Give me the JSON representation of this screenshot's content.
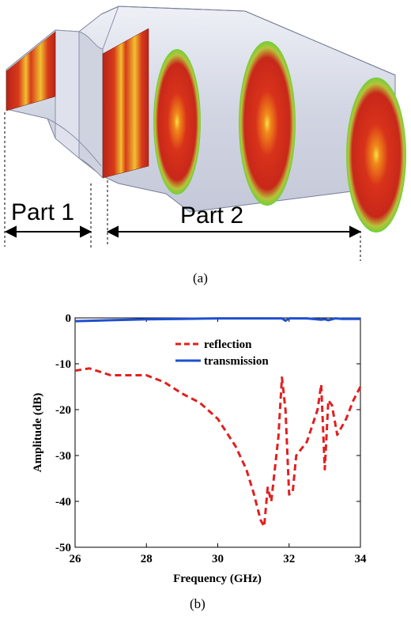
{
  "figure_a": {
    "part1_label": "Part 1",
    "part2_label": "Part 2",
    "caption": "(a)"
  },
  "figure_b": {
    "caption": "(b)"
  },
  "chart_data": {
    "type": "line",
    "xlabel": "Frequency (GHz)",
    "ylabel": "Amplitude (dB)",
    "xlim": [
      26,
      34
    ],
    "ylim": [
      -50,
      0
    ],
    "xticks": [
      "26",
      "28",
      "30",
      "32",
      "34"
    ],
    "yticks": [
      "0",
      "-10",
      "-20",
      "-30",
      "-40",
      "-50"
    ],
    "grid": false,
    "legend_position": "top-right",
    "series": [
      {
        "name": "reflection",
        "color": "#e02020",
        "style": "dashed",
        "x": [
          26.0,
          26.4,
          27.0,
          27.5,
          28.0,
          28.5,
          29.0,
          29.5,
          30.0,
          30.5,
          30.8,
          31.0,
          31.2,
          31.3,
          31.4,
          31.5,
          31.7,
          31.8,
          31.9,
          32.0,
          32.1,
          32.2,
          32.5,
          32.8,
          32.9,
          33.0,
          33.1,
          33.2,
          33.35,
          33.6,
          33.8,
          34.0
        ],
        "values": [
          -11.5,
          -11.0,
          -12.5,
          -12.5,
          -12.5,
          -14,
          -16.5,
          -18.5,
          -22,
          -28,
          -33,
          -38,
          -44,
          -45.5,
          -37,
          -40,
          -26,
          -13,
          -20,
          -38.5,
          -38,
          -30,
          -27,
          -20,
          -14.5,
          -33,
          -18,
          -19,
          -25.5,
          -22,
          -18,
          -15
        ]
      },
      {
        "name": "transmission",
        "color": "#1f4fd0",
        "style": "solid",
        "x": [
          26.0,
          27.0,
          28.0,
          29.0,
          30.0,
          31.0,
          31.8,
          31.9,
          32.0,
          32.5,
          32.9,
          33.0,
          33.1,
          33.3,
          33.5,
          34.0
        ],
        "values": [
          -0.7,
          -0.5,
          -0.3,
          -0.2,
          -0.1,
          -0.1,
          -0.1,
          -0.6,
          -0.1,
          -0.1,
          -0.4,
          -0.3,
          -0.5,
          -0.1,
          -0.2,
          -0.2
        ]
      }
    ]
  }
}
